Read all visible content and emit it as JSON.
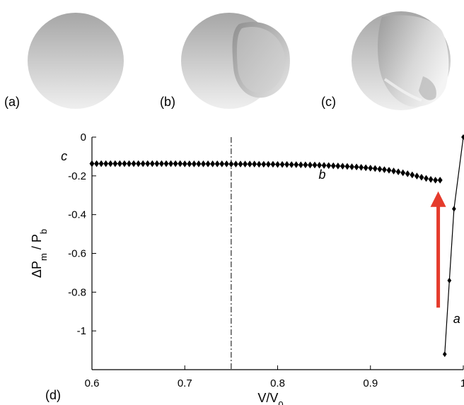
{
  "panels": [
    {
      "label": "(a)"
    },
    {
      "label": "(b)"
    },
    {
      "label": "(c)"
    }
  ],
  "chart_panel_label": "(d)",
  "chart_data": {
    "type": "scatter",
    "xlabel": "V/V",
    "xlabel_sub": "0",
    "ylabel": {
      "p1": "ΔP",
      "s1": "m",
      "p2": " / P",
      "s2": "b"
    },
    "xlim": [
      0.6,
      1.0
    ],
    "ylim": [
      -1.2,
      0
    ],
    "xticks": [
      0.6,
      0.7,
      0.8,
      0.9,
      1.0
    ],
    "xtick_labels": [
      "0.6",
      "0.7",
      "0.8",
      "0.9",
      "1"
    ],
    "yticks": [
      0,
      -0.2,
      -0.4,
      -0.6,
      -0.8,
      -1
    ],
    "ytick_labels": [
      "0",
      "-0.2",
      "-0.4",
      "-0.6",
      "-0.8",
      "-1"
    ],
    "reference_line_x": 0.75,
    "series": [
      {
        "key": "branch-b",
        "marker": "diamond",
        "line": false,
        "x": [
          0.6,
          0.605,
          0.61,
          0.615,
          0.62,
          0.625,
          0.63,
          0.635,
          0.64,
          0.645,
          0.65,
          0.655,
          0.66,
          0.665,
          0.67,
          0.675,
          0.68,
          0.685,
          0.69,
          0.695,
          0.7,
          0.705,
          0.71,
          0.715,
          0.72,
          0.725,
          0.73,
          0.735,
          0.74,
          0.745,
          0.75,
          0.755,
          0.76,
          0.765,
          0.77,
          0.775,
          0.78,
          0.785,
          0.79,
          0.795,
          0.8,
          0.805,
          0.81,
          0.815,
          0.82,
          0.825,
          0.83,
          0.835,
          0.84,
          0.845,
          0.85,
          0.855,
          0.86,
          0.865,
          0.87,
          0.875,
          0.88,
          0.885,
          0.89,
          0.895,
          0.9,
          0.905,
          0.91,
          0.915,
          0.92,
          0.925,
          0.93,
          0.935,
          0.94,
          0.945,
          0.95,
          0.955,
          0.96,
          0.965,
          0.97,
          0.975
        ],
        "y": [
          -0.137,
          -0.137,
          -0.137,
          -0.137,
          -0.137,
          -0.137,
          -0.137,
          -0.137,
          -0.137,
          -0.137,
          -0.137,
          -0.137,
          -0.137,
          -0.137,
          -0.137,
          -0.137,
          -0.137,
          -0.137,
          -0.137,
          -0.137,
          -0.138,
          -0.138,
          -0.138,
          -0.138,
          -0.138,
          -0.138,
          -0.138,
          -0.138,
          -0.138,
          -0.138,
          -0.139,
          -0.139,
          -0.139,
          -0.139,
          -0.139,
          -0.139,
          -0.14,
          -0.14,
          -0.14,
          -0.14,
          -0.141,
          -0.141,
          -0.141,
          -0.142,
          -0.142,
          -0.143,
          -0.143,
          -0.144,
          -0.144,
          -0.145,
          -0.146,
          -0.147,
          -0.148,
          -0.149,
          -0.15,
          -0.151,
          -0.153,
          -0.154,
          -0.156,
          -0.158,
          -0.16,
          -0.162,
          -0.165,
          -0.168,
          -0.171,
          -0.175,
          -0.179,
          -0.184,
          -0.189,
          -0.195,
          -0.201,
          -0.207,
          -0.213,
          -0.218,
          -0.222,
          -0.222
        ]
      },
      {
        "key": "branch-a",
        "marker": "diamond",
        "line": true,
        "x": [
          0.98,
          0.985,
          0.99,
          1.0
        ],
        "y": [
          -1.12,
          -0.74,
          -0.37,
          0.0
        ]
      }
    ],
    "annotations": [
      {
        "text": "c",
        "x": 0.57,
        "y": -0.12
      },
      {
        "text": "b",
        "x": 0.848,
        "y": -0.215
      },
      {
        "text": "a",
        "x": 0.993,
        "y": -0.96
      }
    ],
    "arrow": {
      "color": "#e53b2c",
      "x": 0.973,
      "y_from": -0.88,
      "y_to": -0.28
    }
  }
}
